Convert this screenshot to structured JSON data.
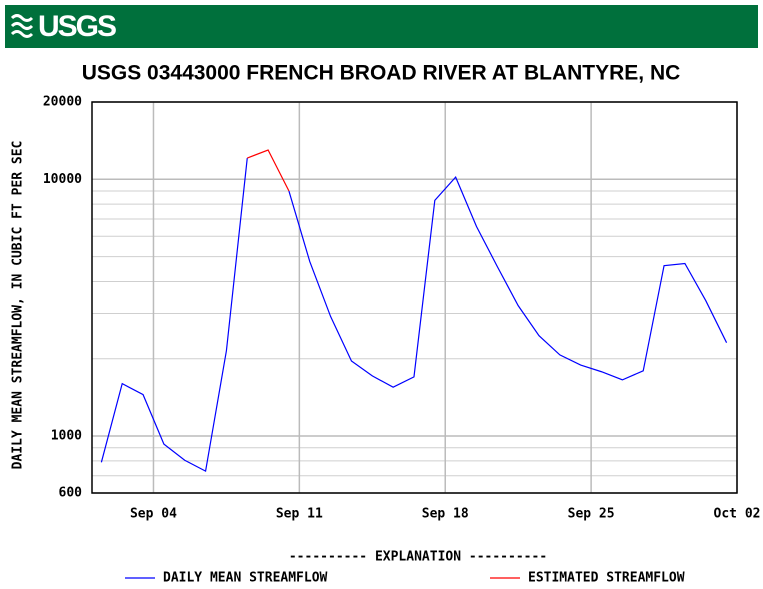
{
  "header": {
    "logo": "USGS"
  },
  "chart_data": {
    "type": "line",
    "title": "USGS 03443000 FRENCH BROAD RIVER AT BLANTYRE, NC",
    "y_label": "DAILY MEAN STREAMFLOW, IN CUBIC FT PER SEC",
    "yscale": "log",
    "ylim": [
      600,
      20000
    ],
    "yticks": [
      600,
      1000,
      10000,
      20000
    ],
    "minor_yticks": [
      700,
      800,
      900,
      2000,
      3000,
      4000,
      5000,
      6000,
      7000,
      8000,
      9000
    ],
    "xlim": [
      1.05,
      32
    ],
    "xticks": [
      {
        "value": 4,
        "label": "Sep 04"
      },
      {
        "value": 11,
        "label": "Sep 11"
      },
      {
        "value": 18,
        "label": "Sep 18"
      },
      {
        "value": 25,
        "label": "Sep 25"
      },
      {
        "value": 32,
        "label": "Oct 02"
      }
    ],
    "grid": true,
    "x": [
      1.5,
      2.5,
      3.5,
      4.5,
      5.5,
      6.5,
      7.5,
      8.5,
      9.5,
      10.5,
      11.5,
      12.5,
      13.5,
      14.5,
      15.5,
      16.5,
      17.5,
      18.5,
      19.5,
      20.5,
      21.5,
      22.5,
      23.5,
      24.5,
      25.5,
      26.5,
      27.5,
      28.5,
      29.5,
      30.5,
      31.5
    ],
    "legend_title": "----------  EXPLANATION  ----------",
    "series": [
      {
        "name": "DAILY MEAN STREAMFLOW",
        "color": "#0000ff",
        "values": [
          790,
          1600,
          1450,
          930,
          805,
          730,
          2150,
          12100,
          null,
          9000,
          4780,
          2920,
          1960,
          1715,
          1550,
          1700,
          8280,
          10200,
          6550,
          4570,
          3220,
          2460,
          2070,
          1890,
          1780,
          1655,
          1795,
          4610,
          4700,
          3370,
          2310
        ]
      },
      {
        "name": "ESTIMATED STREAMFLOW",
        "color": "#ff0000",
        "values": [
          null,
          null,
          null,
          null,
          null,
          null,
          null,
          12100,
          13000,
          9000,
          null,
          null,
          null,
          null,
          null,
          null,
          null,
          null,
          null,
          null,
          null,
          null,
          null,
          null,
          null,
          null,
          null,
          null,
          null,
          null,
          null
        ]
      }
    ]
  }
}
